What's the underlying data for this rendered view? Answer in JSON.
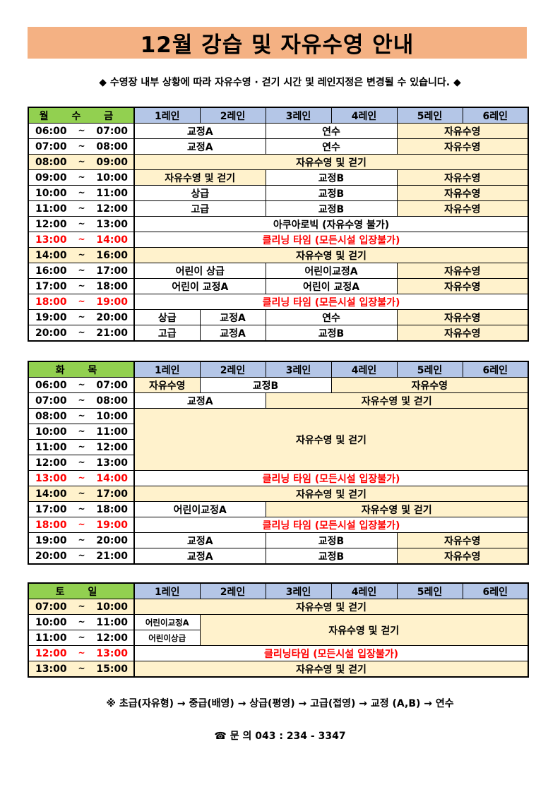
{
  "title": "12월 강습 및 자유수영 안내",
  "notice": "◆ 수영장 내부 상황에 따라 자유수영 · 걷기 시간 및 레인지정은 변경될 수 있습니다. ◆",
  "colors": {
    "title_bg": "#f4b183",
    "day_header": "#92d050",
    "lane_header": "#b4c6e7",
    "free_swim": "#fff2cc",
    "cleaning": "#ff0000"
  },
  "lanes": [
    "1레인",
    "2레인",
    "3레인",
    "4레인",
    "5레인",
    "6레인"
  ],
  "tables": [
    {
      "day_label": "월 수 금",
      "rows": [
        {
          "start": "06:00",
          "end": "07:00",
          "cells": [
            {
              "text": "교정A",
              "span": 2
            },
            {
              "text": "연수",
              "span": 2
            },
            {
              "text": "자유수영",
              "span": 2,
              "bg": "c"
            }
          ]
        },
        {
          "start": "07:00",
          "end": "08:00",
          "cells": [
            {
              "text": "교정A",
              "span": 2
            },
            {
              "text": "연수",
              "span": 2
            },
            {
              "text": "자유수영",
              "span": 2,
              "bg": "c"
            }
          ]
        },
        {
          "start": "08:00",
          "end": "09:00",
          "time_bg": "c",
          "cells": [
            {
              "text": "자유수영 및 걷기",
              "span": 6,
              "bg": "c"
            }
          ]
        },
        {
          "start": "09:00",
          "end": "10:00",
          "cells": [
            {
              "text": "자유수영 및 걷기",
              "span": 2,
              "bg": "c"
            },
            {
              "text": "교정B",
              "span": 2
            },
            {
              "text": "자유수영",
              "span": 2,
              "bg": "c"
            }
          ]
        },
        {
          "start": "10:00",
          "end": "11:00",
          "cells": [
            {
              "text": "상급",
              "span": 2
            },
            {
              "text": "교정B",
              "span": 2
            },
            {
              "text": "자유수영",
              "span": 2,
              "bg": "c"
            }
          ]
        },
        {
          "start": "11:00",
          "end": "12:00",
          "cells": [
            {
              "text": "고급",
              "span": 2
            },
            {
              "text": "교정B",
              "span": 2
            },
            {
              "text": "자유수영",
              "span": 2,
              "bg": "c"
            }
          ]
        },
        {
          "start": "12:00",
          "end": "13:00",
          "cells": [
            {
              "text": "아쿠아로빅 (자유수영 불가)",
              "span": 6
            }
          ]
        },
        {
          "start": "13:00",
          "end": "14:00",
          "red": true,
          "cells": [
            {
              "text": "클리닝 타임 (모든시설 입장불가)",
              "span": 6,
              "red": true
            }
          ]
        },
        {
          "start": "14:00",
          "end": "16:00",
          "time_bg": "c",
          "cells": [
            {
              "text": "자유수영 및 걷기",
              "span": 6,
              "bg": "c"
            }
          ]
        },
        {
          "start": "16:00",
          "end": "17:00",
          "cells": [
            {
              "text": "어린이 상급",
              "span": 2
            },
            {
              "text": "어린이교정A",
              "span": 2
            },
            {
              "text": "자유수영",
              "span": 2,
              "bg": "c"
            }
          ]
        },
        {
          "start": "17:00",
          "end": "18:00",
          "cells": [
            {
              "text": "어린이 교정A",
              "span": 2
            },
            {
              "text": "어린이 교정A",
              "span": 2
            },
            {
              "text": "자유수영",
              "span": 2,
              "bg": "c"
            }
          ]
        },
        {
          "start": "18:00",
          "end": "19:00",
          "red": true,
          "cells": [
            {
              "text": "클리닝 타임 (모든시설 입장불가)",
              "span": 6,
              "red": true
            }
          ]
        },
        {
          "start": "19:00",
          "end": "20:00",
          "cells": [
            {
              "text": "상급",
              "span": 1
            },
            {
              "text": "교정A",
              "span": 1
            },
            {
              "text": "연수",
              "span": 2
            },
            {
              "text": "자유수영",
              "span": 2,
              "bg": "c"
            }
          ]
        },
        {
          "start": "20:00",
          "end": "21:00",
          "cells": [
            {
              "text": "고급",
              "span": 1
            },
            {
              "text": "교정A",
              "span": 1
            },
            {
              "text": "교정B",
              "span": 2
            },
            {
              "text": "자유수영",
              "span": 2,
              "bg": "c"
            }
          ]
        }
      ]
    },
    {
      "day_label": "화 목",
      "rows": [
        {
          "start": "06:00",
          "end": "07:00",
          "cells": [
            {
              "text": "자유수영",
              "span": 1,
              "bg": "c"
            },
            {
              "text": "교정B",
              "span": 2
            },
            {
              "text": "자유수영",
              "span": 3,
              "bg": "c"
            }
          ]
        },
        {
          "start": "07:00",
          "end": "08:00",
          "cells": [
            {
              "text": "교정A",
              "span": 2
            },
            {
              "text": "자유수영 및 걷기",
              "span": 4,
              "bg": "c"
            }
          ]
        },
        {
          "start": "08:00",
          "end": "10:00",
          "cells": [
            {
              "text": "자유수영 및 걷기",
              "span": 6,
              "rowspan": 4,
              "bg": "c"
            }
          ]
        },
        {
          "start": "10:00",
          "end": "11:00",
          "cells": []
        },
        {
          "start": "11:00",
          "end": "12:00",
          "cells": []
        },
        {
          "start": "12:00",
          "end": "13:00",
          "cells": []
        },
        {
          "start": "13:00",
          "end": "14:00",
          "red": true,
          "cells": [
            {
              "text": "클리닝 타임 (모든시설 입장불가)",
              "span": 6,
              "red": true
            }
          ]
        },
        {
          "start": "14:00",
          "end": "17:00",
          "time_bg": "c",
          "cells": [
            {
              "text": "자유수영 및 걷기",
              "span": 6,
              "bg": "c"
            }
          ]
        },
        {
          "start": "17:00",
          "end": "18:00",
          "cells": [
            {
              "text": "어린이교정A",
              "span": 2
            },
            {
              "text": "자유수영 및 걷기",
              "span": 4,
              "bg": "c"
            }
          ]
        },
        {
          "start": "18:00",
          "end": "19:00",
          "red": true,
          "cells": [
            {
              "text": "클리닝 타임 (모든시설 입장불가)",
              "span": 6,
              "red": true
            }
          ]
        },
        {
          "start": "19:00",
          "end": "20:00",
          "cells": [
            {
              "text": "교정A",
              "span": 2
            },
            {
              "text": "교정B",
              "span": 2
            },
            {
              "text": "자유수영",
              "span": 2,
              "bg": "c"
            }
          ]
        },
        {
          "start": "20:00",
          "end": "21:00",
          "cells": [
            {
              "text": "교정A",
              "span": 2
            },
            {
              "text": "교정B",
              "span": 2
            },
            {
              "text": "자유수영",
              "span": 2,
              "bg": "c"
            }
          ]
        }
      ]
    },
    {
      "day_label": "토 일",
      "rows": [
        {
          "start": "07:00",
          "end": "10:00",
          "time_bg": "c",
          "cells": [
            {
              "text": "자유수영 및 걷기",
              "span": 6,
              "bg": "c"
            }
          ]
        },
        {
          "start": "10:00",
          "end": "11:00",
          "cells": [
            {
              "text": "어린이교정A",
              "span": 1,
              "small": true
            },
            {
              "text": "자유수영 및 걷기",
              "span": 5,
              "rowspan": 2,
              "bg": "c"
            }
          ]
        },
        {
          "start": "11:00",
          "end": "12:00",
          "cells": [
            {
              "text": "어린이상급",
              "span": 1,
              "small": true
            }
          ]
        },
        {
          "start": "12:00",
          "end": "13:00",
          "red": true,
          "cells": [
            {
              "text": "클리닝타임 (모든시설 입장불가)",
              "span": 6,
              "red": true
            }
          ]
        },
        {
          "start": "13:00",
          "end": "15:00",
          "time_bg": "c",
          "cells": [
            {
              "text": "자유수영 및 걷기",
              "span": 6,
              "bg": "c"
            }
          ]
        }
      ]
    }
  ],
  "tilde": "~",
  "footer": {
    "levels": "※ 초급(자유형) → 중급(배영) → 상급(평영) → 고급(접영) → 교정 (A,B) → 연수",
    "phone_icon": "telephone-icon",
    "contact": "☎ 문 의 043 : 234 - 3347"
  }
}
